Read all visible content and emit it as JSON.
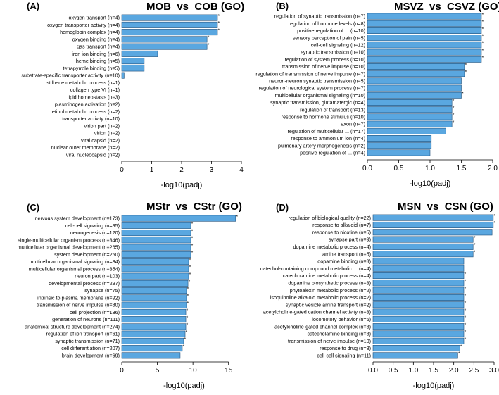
{
  "colors": {
    "bar_fill": "#5aa7e0",
    "bar_stroke": "#1f4f7a"
  },
  "chart_data": [
    {
      "type": "bar",
      "orientation": "horizontal",
      "letter": "(A)",
      "title": "MOB_vs_COB (GO)",
      "xlabel": "-log10(padj)",
      "xlim": [
        0,
        4
      ],
      "xticks": [
        "0",
        "1",
        "2",
        "3",
        "4"
      ],
      "categories": [
        "oxygen transport (n=4)",
        "oxygen transporter activity (n=4)",
        "hemoglobin complex (n=4)",
        "oxygen binding (n=4)",
        "gas transport (n=4)",
        "iron ion binding (n=6)",
        "heme binding (n=5)",
        "tetrapyrrole binding (n=5)",
        "substrate-specific transporter activity (n=10)",
        "stilbene metabolic process (n=1)",
        "collagen type VI (n=1)",
        "lipid homeostasis (n=3)",
        "plasminogen activation (n=2)",
        "retinol metabolic process (n=2)",
        "transporter activity (n=10)",
        "virion part (n=2)",
        "virion (n=2)",
        "viral capsid (n=2)",
        "nuclear outer membrane (n=2)",
        "viral nucleocapsid (n=2)"
      ],
      "values": [
        3.2,
        3.2,
        3.2,
        2.85,
        2.85,
        1.2,
        0.75,
        0.75,
        0.08,
        0,
        0,
        0,
        0,
        0,
        0,
        0,
        0,
        0,
        0,
        0
      ],
      "significant": [
        true,
        true,
        true,
        true,
        true,
        false,
        false,
        false,
        false,
        false,
        false,
        false,
        false,
        false,
        false,
        false,
        false,
        false,
        false,
        false
      ]
    },
    {
      "type": "bar",
      "orientation": "horizontal",
      "letter": "(B)",
      "title": "MSVZ_vs_CSVZ (GO)",
      "xlabel": "-log10(padj)",
      "xlim": [
        0,
        2
      ],
      "xticks": [
        "0.0",
        "0.5",
        "1.0",
        "1.5",
        "2.0"
      ],
      "categories": [
        "regulation of synaptic transmission (n=7)",
        "regulation of hormone levels (n=8)",
        "positive regulation of ... (n=10)",
        "sensory perception of pain (n=5)",
        "cell-cell signaling (n=12)",
        "synaptic transmission (n=10)",
        "regulation of system process (n=10)",
        "transmission of nerve impulse (n=10)",
        "regulation of transmission of nerve impulse (n=7)",
        "neuron-neuron synaptic transmission (n=5)",
        "regulation of neurological system process (n=7)",
        "multicellular organismal signaling (n=10)",
        "synaptic transmission, glutamatergic (n=4)",
        "regulation of transport (n=13)",
        "response to hormone stimulus (n=10)",
        "axon (n=7)",
        "regulation of multicellular ... (n=17)",
        "response to ammonium ion (n=4)",
        "pulmonary artery morphogenesis (n=2)",
        "positive regulation of ... (n=4)"
      ],
      "values": [
        1.82,
        1.82,
        1.82,
        1.82,
        1.82,
        1.82,
        1.82,
        1.55,
        1.55,
        1.5,
        1.5,
        1.5,
        1.35,
        1.35,
        1.35,
        1.35,
        1.25,
        1.02,
        1.02,
        1.0
      ],
      "significant": [
        true,
        true,
        true,
        true,
        true,
        true,
        true,
        true,
        true,
        false,
        false,
        true,
        true,
        true,
        true,
        true,
        false,
        false,
        false,
        false
      ]
    },
    {
      "type": "bar",
      "orientation": "horizontal",
      "letter": "(C)",
      "title": "MStr_vs_CStr (GO)",
      "xlabel": "-log10(padj)",
      "xlim": [
        0,
        17.5
      ],
      "xticks": [
        "0",
        "5",
        "10",
        "15"
      ],
      "xtick_values": [
        0,
        5,
        10,
        15
      ],
      "categories": [
        "nervous system development (n=173)",
        "cell-cell signaling (n=95)",
        "neurogenesis (n=120)",
        "single-multicellular organism process (n=346)",
        "multicellular organismal development (n=265)",
        "system development (n=250)",
        "multicellular organismal signaling (n=84)",
        "multicellular organismal process (n=354)",
        "neuron part (n=103)",
        "developmental process (n=297)",
        "synapse (n=75)",
        "intrinsic to plasma membrane (n=92)",
        "transmission of nerve impulse (n=80)",
        "cell projection (n=136)",
        "generation of neurons (n=111)",
        "anatomical structure development (n=274)",
        "regulation of ion transport (n=61)",
        "synaptic transmission (n=71)",
        "cell differentiation (n=207)",
        "brain development (n=69)"
      ],
      "values": [
        16.0,
        9.7,
        9.7,
        9.7,
        9.7,
        9.7,
        9.4,
        9.4,
        9.4,
        9.3,
        9.1,
        9.1,
        9.1,
        9.0,
        9.0,
        9.0,
        8.9,
        8.7,
        8.5,
        8.2
      ],
      "significant": [
        true,
        true,
        true,
        true,
        true,
        true,
        true,
        true,
        true,
        true,
        true,
        true,
        true,
        true,
        true,
        true,
        true,
        true,
        true,
        false
      ]
    },
    {
      "type": "bar",
      "orientation": "horizontal",
      "letter": "(D)",
      "title": "MSN_vs_CSN (GO)",
      "xlabel": "-log10(padj)",
      "xlim": [
        0,
        3
      ],
      "xticks": [
        "0.0",
        "0.5",
        "1.0",
        "1.5",
        "2.0",
        "2.5",
        "3.0"
      ],
      "categories": [
        "regulation of biological quality (n=22)",
        "response to alkaloid (n=7)",
        "response to nicotine (n=5)",
        "synapse part (n=9)",
        "dopamine metabolic process (n=4)",
        "amine transport (n=5)",
        "dopamine binding (n=3)",
        "catechol-containing compound metabolic ... (n=4)",
        "catecholamine metabolic process (n=4)",
        "dopamine biosynthetic process (n=3)",
        "phytoalexin metabolic process (n=2)",
        "isoquinoline alkaloid metabolic process (n=2)",
        "synaptic vesicle amine transport (n=2)",
        "acetylcholine-gated cation channel activity (n=3)",
        "locomotory behavior (n=6)",
        "acetylcholine-gated channel complex (n=3)",
        "catecholamine binding (n=3)",
        "transmission of nerve impulse (n=10)",
        "response to drug (n=8)",
        "cell-cell signaling (n=11)"
      ],
      "values": [
        2.98,
        2.98,
        2.95,
        2.48,
        2.48,
        2.48,
        2.25,
        2.25,
        2.25,
        2.25,
        2.25,
        2.25,
        2.25,
        2.25,
        2.25,
        2.25,
        2.25,
        2.25,
        2.15,
        2.1
      ],
      "significant": [
        true,
        true,
        false,
        true,
        true,
        true,
        false,
        false,
        true,
        true,
        true,
        true,
        true,
        true,
        true,
        true,
        true,
        true,
        true,
        true
      ]
    }
  ]
}
